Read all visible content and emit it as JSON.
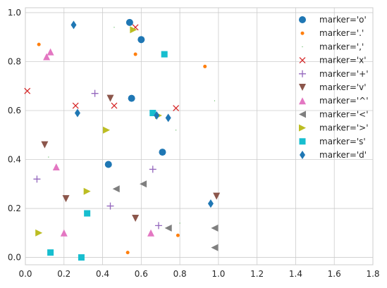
{
  "chart_data": {
    "type": "scatter",
    "title": "",
    "xlabel": "",
    "ylabel": "",
    "xlim": [
      0,
      1.8
    ],
    "ylim": [
      -0.03,
      1.02
    ],
    "xticks": [
      0.0,
      0.2,
      0.4,
      0.6,
      0.8,
      1.0,
      1.2,
      1.4,
      1.6,
      1.8
    ],
    "xtick_labels": [
      "0.0",
      "0.2",
      "0.4",
      "0.6",
      "0.8",
      "1.0",
      "1.2",
      "1.4",
      "1.6",
      "1.8"
    ],
    "yticks": [
      0.0,
      0.2,
      0.4,
      0.6,
      0.8,
      1.0
    ],
    "ytick_labels": [
      "0.0",
      "0.2",
      "0.4",
      "0.6",
      "0.8",
      "1.0"
    ],
    "grid": true,
    "legend_position": "upper-right",
    "series": [
      {
        "name": "marker='o'",
        "marker": "o",
        "color": "#1f77b4",
        "x": [
          0.54,
          0.6,
          0.55,
          0.43,
          0.71
        ],
        "y": [
          0.96,
          0.89,
          0.65,
          0.38,
          0.43
        ]
      },
      {
        "name": "marker='.'",
        "marker": ".",
        "color": "#ff7f0e",
        "x": [
          0.07,
          0.57,
          0.93,
          0.53,
          0.79
        ],
        "y": [
          0.87,
          0.83,
          0.78,
          0.02,
          0.09
        ]
      },
      {
        "name": "marker=','",
        "marker": ",",
        "color": "#2ca02c",
        "x": [
          0.46,
          0.12,
          0.78,
          0.98,
          0.8
        ],
        "y": [
          0.94,
          0.41,
          0.52,
          0.64,
          0.14
        ]
      },
      {
        "name": "marker='x'",
        "marker": "x",
        "color": "#d62728",
        "x": [
          0.57,
          0.01,
          0.26,
          0.46,
          0.78
        ],
        "y": [
          0.94,
          0.68,
          0.62,
          0.62,
          0.61
        ]
      },
      {
        "name": "marker='+'",
        "marker": "+",
        "color": "#9467bd",
        "x": [
          0.36,
          0.06,
          0.44,
          0.66,
          0.69
        ],
        "y": [
          0.67,
          0.32,
          0.21,
          0.36,
          0.13
        ]
      },
      {
        "name": "marker='v'",
        "marker": "v",
        "color": "#8c564b",
        "x": [
          0.44,
          0.1,
          0.21,
          0.57,
          0.99
        ],
        "y": [
          0.65,
          0.46,
          0.24,
          0.16,
          0.25
        ]
      },
      {
        "name": "marker='^'",
        "marker": "^",
        "color": "#e377c2",
        "x": [
          0.11,
          0.13,
          0.16,
          0.2,
          0.65
        ],
        "y": [
          0.82,
          0.84,
          0.37,
          0.1,
          0.1
        ]
      },
      {
        "name": "marker='<'",
        "marker": "<",
        "color": "#7f7f7f",
        "x": [
          0.47,
          0.61,
          0.74,
          0.98,
          0.98
        ],
        "y": [
          0.28,
          0.3,
          0.12,
          0.12,
          0.04
        ]
      },
      {
        "name": "marker='>'",
        "marker": ">",
        "color": "#bcbd22",
        "x": [
          0.56,
          0.42,
          0.69,
          0.32,
          0.07
        ],
        "y": [
          0.93,
          0.52,
          0.58,
          0.27,
          0.1
        ]
      },
      {
        "name": "marker='s'",
        "marker": "s",
        "color": "#17becf",
        "x": [
          0.72,
          0.66,
          0.32,
          0.13,
          0.29
        ],
        "y": [
          0.83,
          0.59,
          0.18,
          0.02,
          0.0
        ]
      },
      {
        "name": "marker='d'",
        "marker": "d",
        "color": "#1f77b4",
        "x": [
          0.25,
          0.27,
          0.68,
          0.74,
          0.96
        ],
        "y": [
          0.95,
          0.59,
          0.58,
          0.57,
          0.22
        ]
      }
    ]
  }
}
